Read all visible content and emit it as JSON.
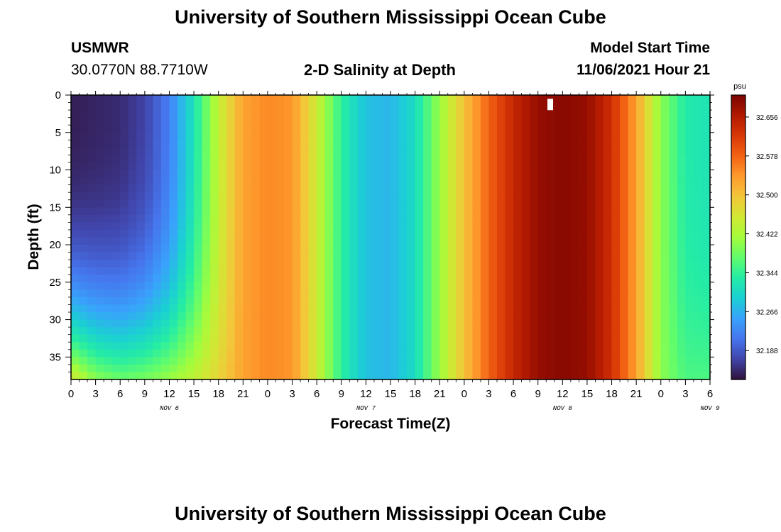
{
  "header": {
    "title": "University of Southern Mississippi Ocean Cube",
    "station_id": "USMWR",
    "coordinates": "30.0770N  88.7710W",
    "plot_title": "2-D Salinity at Depth",
    "model_start_label": "Model Start Time",
    "model_start_value": "11/06/2021 Hour 21"
  },
  "footer": {
    "title": "University of Southern Mississippi Ocean Cube"
  },
  "chart_data": {
    "type": "heatmap",
    "title": "2-D Salinity at Depth",
    "xlabel": "Forecast Time(Z)",
    "ylabel": "Depth (ft)",
    "x_tick_labels": [
      "0",
      "3",
      "6",
      "9",
      "12",
      "15",
      "18",
      "21",
      "0",
      "3",
      "6",
      "9",
      "12",
      "15",
      "18",
      "21",
      "0",
      "3",
      "6",
      "9",
      "12",
      "15",
      "18",
      "21",
      "0",
      "3",
      "6"
    ],
    "day_labels": [
      {
        "label": "NOV 6",
        "at_hour": 12
      },
      {
        "label": "NOV 7",
        "at_hour": 36
      },
      {
        "label": "NOV 8",
        "at_hour": 60
      },
      {
        "label": "NOV 9",
        "at_hour": 78
      }
    ],
    "x_range_hours": [
      0,
      78
    ],
    "x_start": "11/06/2021 Hour 0",
    "y_tick_labels": [
      "0",
      "5",
      "10",
      "15",
      "20",
      "25",
      "30",
      "35"
    ],
    "ylim": [
      0,
      38
    ],
    "y_inverted": true,
    "colorbar": {
      "unit": "psu",
      "tick_labels": [
        "32.656",
        "32.578",
        "32.500",
        "32.422",
        "32.344",
        "32.266",
        "32.188"
      ],
      "range": [
        32.13,
        32.7
      ],
      "colors": [
        "#30123b",
        "#4145ab",
        "#4675ed",
        "#39a2fc",
        "#1bcfd4",
        "#24eca6",
        "#61fc6c",
        "#a4fc3b",
        "#d1e834",
        "#f3c63a",
        "#fe9b2d",
        "#f36315",
        "#d93806",
        "#b11901",
        "#7a0402"
      ]
    },
    "depth_profile_ft": [
      0,
      5,
      10,
      15,
      20,
      25,
      30,
      35,
      38
    ],
    "surface_salinity_psu_by_hour": [
      [
        0,
        32.14
      ],
      [
        6,
        32.15
      ],
      [
        9,
        32.17
      ],
      [
        12,
        32.22
      ],
      [
        15,
        32.32
      ],
      [
        18,
        32.44
      ],
      [
        21,
        32.53
      ],
      [
        24,
        32.55
      ],
      [
        27,
        32.54
      ],
      [
        30,
        32.45
      ],
      [
        33,
        32.34
      ],
      [
        36,
        32.28
      ],
      [
        39,
        32.27
      ],
      [
        42,
        32.31
      ],
      [
        45,
        32.41
      ],
      [
        48,
        32.5
      ],
      [
        51,
        32.58
      ],
      [
        54,
        32.64
      ],
      [
        57,
        32.68
      ],
      [
        60,
        32.69
      ],
      [
        63,
        32.68
      ],
      [
        66,
        32.63
      ],
      [
        69,
        32.53
      ],
      [
        72,
        32.4
      ],
      [
        75,
        32.33
      ],
      [
        78,
        32.32
      ]
    ],
    "bottom_salinity_psu_by_hour": [
      [
        0,
        32.46
      ],
      [
        3,
        32.4
      ],
      [
        6,
        32.38
      ],
      [
        9,
        32.39
      ],
      [
        12,
        32.41
      ],
      [
        15,
        32.44
      ],
      [
        18,
        32.48
      ],
      [
        21,
        32.53
      ],
      [
        24,
        32.55
      ],
      [
        27,
        32.54
      ],
      [
        30,
        32.45
      ],
      [
        33,
        32.34
      ],
      [
        36,
        32.28
      ],
      [
        39,
        32.27
      ],
      [
        42,
        32.31
      ],
      [
        45,
        32.41
      ],
      [
        48,
        32.5
      ],
      [
        51,
        32.58
      ],
      [
        54,
        32.64
      ],
      [
        57,
        32.68
      ],
      [
        60,
        32.69
      ],
      [
        63,
        32.68
      ],
      [
        66,
        32.63
      ],
      [
        69,
        32.53
      ],
      [
        72,
        32.4
      ],
      [
        75,
        32.36
      ],
      [
        78,
        32.36
      ]
    ],
    "marker": {
      "at_hour": 58.5,
      "depth_ft": 0.5
    }
  }
}
